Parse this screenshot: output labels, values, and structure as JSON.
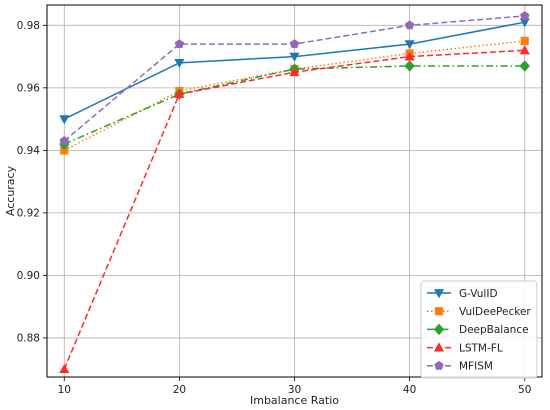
{
  "chart_data": {
    "type": "line",
    "xlabel": "Imbalance Ratio",
    "ylabel": "Accuracy",
    "x": [
      10,
      20,
      30,
      40,
      50
    ],
    "xticks": [
      "10",
      "20",
      "30",
      "40",
      "50"
    ],
    "yticks": [
      "0.88",
      "0.90",
      "0.92",
      "0.94",
      "0.96",
      "0.98"
    ],
    "xlim": [
      8.5,
      51.5
    ],
    "ylim": [
      0.8675,
      0.9865
    ],
    "grid": true,
    "legend_position": "bottom-right",
    "series": [
      {
        "name": "G-VulID",
        "values": [
          0.95,
          0.968,
          0.97,
          0.974,
          0.981
        ],
        "color": "#1f77b4",
        "dash": "solid",
        "marker": "triangle-down"
      },
      {
        "name": "VulDeePecker",
        "values": [
          0.94,
          0.959,
          0.966,
          0.971,
          0.975
        ],
        "color": "#ff7f0e",
        "dash": "dotted",
        "marker": "square"
      },
      {
        "name": "DeepBalance",
        "values": [
          0.942,
          0.958,
          0.966,
          0.967,
          0.967
        ],
        "color": "#2ca02c",
        "dash": "dashdot",
        "marker": "diamond"
      },
      {
        "name": "LSTM-FL",
        "values": [
          0.87,
          0.958,
          0.965,
          0.97,
          0.972
        ],
        "color": "#ff2a2a",
        "dash": "dashed",
        "marker": "triangle-up"
      },
      {
        "name": "MFISM",
        "values": [
          0.943,
          0.974,
          0.974,
          0.98,
          0.983
        ],
        "color": "#9467bd",
        "dash": "dashed",
        "marker": "pentagon"
      }
    ]
  }
}
